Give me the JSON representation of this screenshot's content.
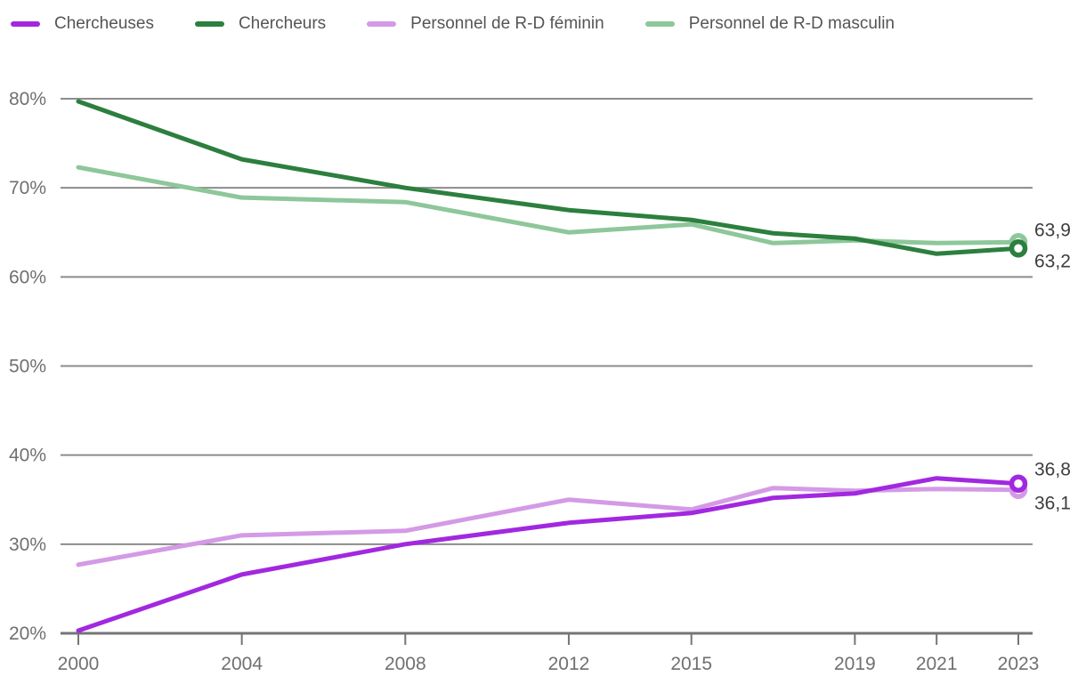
{
  "page": {
    "background": "#ffffff"
  },
  "axis": {
    "tick_label_color": "#707070",
    "gridline_color": "#8c8c8c",
    "axisline_color": "#757575",
    "end_label_color": "#3d3d3d"
  },
  "chart_data": {
    "type": "line",
    "title": "",
    "xlabel": "",
    "ylabel": "",
    "x": [
      2000,
      2004,
      2008,
      2012,
      2015,
      2017,
      2019,
      2021,
      2023
    ],
    "xlim": [
      2000,
      2023
    ],
    "ylim": [
      20,
      80
    ],
    "x_ticks": [
      2000,
      2004,
      2008,
      2012,
      2015,
      2019,
      2021,
      2023
    ],
    "x_tick_labels": [
      "2000",
      "2004",
      "2008",
      "2012",
      "2015",
      "2019",
      "2021",
      "2023"
    ],
    "y_ticks": [
      20,
      30,
      40,
      50,
      60,
      70,
      80
    ],
    "y_tick_labels": [
      "20%",
      "30%",
      "40%",
      "50%",
      "60%",
      "70%",
      "80%"
    ],
    "grid": "horizontal",
    "legend_position": "top",
    "series": [
      {
        "name": "Chercheuses",
        "color": "#a228e0",
        "values": [
          20.3,
          26.6,
          30.0,
          32.4,
          33.5,
          35.2,
          35.7,
          37.4,
          36.8
        ],
        "end_label": "36,8",
        "end_marker": "open-circle",
        "label_dy": -16,
        "z": 4
      },
      {
        "name": "Chercheurs",
        "color": "#2c7f3e",
        "values": [
          79.7,
          73.2,
          70.0,
          67.5,
          66.4,
          64.9,
          64.3,
          62.6,
          63.2
        ],
        "end_label": "63,2",
        "end_marker": "open-circle",
        "label_dy": 14,
        "z": 3
      },
      {
        "name": "Personnel de R-D féminin",
        "color": "#d49ae6",
        "values": [
          27.7,
          31.0,
          31.5,
          35.0,
          33.9,
          36.3,
          36.0,
          36.2,
          36.1
        ],
        "end_label": "36,1",
        "end_marker": "open-circle",
        "label_dy": 15,
        "z": 2
      },
      {
        "name": "Personnel de R-D masculin",
        "color": "#8dc79a",
        "values": [
          72.3,
          68.9,
          68.4,
          65.0,
          65.9,
          63.8,
          64.1,
          63.8,
          63.9
        ],
        "end_label": "63,9",
        "end_marker": "open-circle",
        "label_dy": -14,
        "z": 1
      }
    ]
  }
}
